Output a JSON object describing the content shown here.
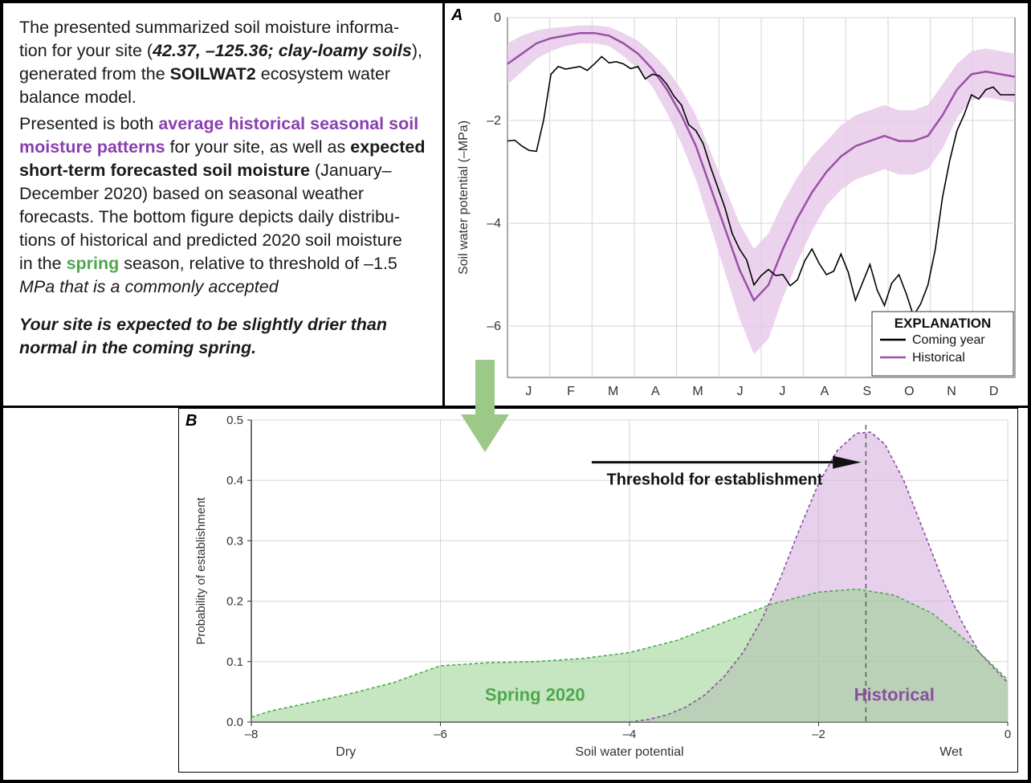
{
  "text_panel": {
    "line1_a": "The presented summarized soil moisture informa-",
    "line1_b": "tion for your site (",
    "coords": "42.37, –125.36; clay-loamy soils",
    "line1_c": "),",
    "line2_a": "generated from the ",
    "model": "SOILWAT2",
    "line2_b": " ecosystem water",
    "line3": "balance model.",
    "line4_a": "Presented is both ",
    "hist_purple": "average historical seasonal soil moisture patterns",
    "line4_b": " for your site, as well as ",
    "forecast_bold": "expected short-term forecasted soil moisture",
    "line5_a": " (January–",
    "line6": "December 2020) based on seasonal weather",
    "line7": "forecasts. The bottom figure depicts daily distribu-",
    "line8": "tions of historical and predicted 2020 soil moisture",
    "line9_a": "in the ",
    "spring": "spring",
    "line9_b": " season, relative to threshold of –1.5",
    "line10": "MPa that is a commonly accepted",
    "conclusion": "Your site is expected to be slightly drier than normal in the coming spring."
  },
  "chart_a": {
    "panel_label": "A",
    "ylabel": "Soil water potential (–MPa)",
    "yticks": [
      0,
      -2,
      -4,
      -6
    ],
    "ytick_labels": [
      "0",
      "–2",
      "–4",
      "–6"
    ],
    "months": [
      "J",
      "F",
      "M",
      "A",
      "M",
      "J",
      "J",
      "A",
      "S",
      "O",
      "N",
      "D"
    ],
    "legend_title": "EXPLANATION",
    "legend_items": [
      {
        "label": "Coming year",
        "color": "#000000"
      },
      {
        "label": "Historical",
        "color": "#9b4fa8"
      }
    ],
    "colors": {
      "historical_line": "#9b4fa8",
      "historical_band": "#e6c8ea",
      "coming_year": "#000000",
      "grid": "#d6d6d6",
      "bg": "#ffffff"
    },
    "ylim": [
      -7,
      0
    ],
    "historical_mean": [
      -0.9,
      -0.7,
      -0.5,
      -0.4,
      -0.35,
      -0.3,
      -0.3,
      -0.35,
      -0.5,
      -0.7,
      -1.0,
      -1.4,
      -1.9,
      -2.5,
      -3.3,
      -4.1,
      -4.9,
      -5.5,
      -5.2,
      -4.5,
      -3.9,
      -3.4,
      -3.0,
      -2.7,
      -2.5,
      -2.4,
      -2.3,
      -2.4,
      -2.4,
      -2.3,
      -1.9,
      -1.4,
      -1.1,
      -1.05,
      -1.1,
      -1.15
    ],
    "historical_upper": [
      -0.5,
      -0.35,
      -0.25,
      -0.2,
      -0.18,
      -0.15,
      -0.15,
      -0.18,
      -0.3,
      -0.45,
      -0.7,
      -1.0,
      -1.4,
      -1.9,
      -2.6,
      -3.3,
      -4.0,
      -4.5,
      -4.2,
      -3.6,
      -3.1,
      -2.7,
      -2.4,
      -2.1,
      -1.9,
      -1.8,
      -1.7,
      -1.8,
      -1.8,
      -1.7,
      -1.3,
      -0.9,
      -0.65,
      -0.6,
      -0.65,
      -0.7
    ],
    "historical_lower": [
      -1.3,
      -1.05,
      -0.8,
      -0.65,
      -0.55,
      -0.5,
      -0.5,
      -0.55,
      -0.75,
      -1.0,
      -1.35,
      -1.85,
      -2.45,
      -3.15,
      -4.05,
      -4.95,
      -5.85,
      -6.55,
      -6.25,
      -5.45,
      -4.75,
      -4.15,
      -3.65,
      -3.35,
      -3.15,
      -3.05,
      -2.95,
      -3.05,
      -3.05,
      -2.95,
      -2.55,
      -1.95,
      -1.6,
      -1.55,
      -1.6,
      -1.65
    ],
    "coming_year_data": [
      -2.4,
      -2.5,
      -2.6,
      -1.1,
      -1.0,
      -0.95,
      -0.9,
      -0.88,
      -0.9,
      -0.95,
      -1.1,
      -1.3,
      -1.7,
      -2.2,
      -2.9,
      -3.7,
      -4.5,
      -5.2,
      -4.9,
      -5.0,
      -5.1,
      -4.5,
      -5.0,
      -4.6,
      -5.5,
      -4.8,
      -5.6,
      -5.0,
      -5.8,
      -5.2,
      -3.5,
      -2.2,
      -1.5,
      -1.4,
      -1.5,
      -1.5
    ]
  },
  "chart_b": {
    "panel_label": "B",
    "ylabel": "Probability of establishment",
    "xlabel": "Soil water potential",
    "threshold_label": "Threshold for establishment",
    "spring_label": "Spring 2020",
    "hist_label": "Historical",
    "dry_label": "Dry",
    "wet_label": "Wet",
    "xlim": [
      -8,
      0
    ],
    "ylim": [
      0,
      0.5
    ],
    "xticks": [
      -8,
      -6,
      -4,
      -2,
      0
    ],
    "xtick_labels": [
      "–8",
      "–6",
      "–4",
      "–2",
      "0"
    ],
    "yticks": [
      0.0,
      0.1,
      0.2,
      0.3,
      0.4,
      0.5
    ],
    "ytick_labels": [
      "0.0",
      "0.1",
      "0.2",
      "0.3",
      "0.4",
      "0.5"
    ],
    "threshold_x": -1.5,
    "colors": {
      "spring_fill": "rgba(150,210,140,0.55)",
      "spring_line": "#4ea84e",
      "hist_fill": "rgba(210,170,220,0.55)",
      "hist_line": "#8a4fa0",
      "grid": "#d6d6d6",
      "bg": "#ffffff",
      "axis": "#333333"
    },
    "spring_curve": [
      [
        -8.0,
        0.008
      ],
      [
        -7.8,
        0.018
      ],
      [
        -7.5,
        0.028
      ],
      [
        -7.0,
        0.045
      ],
      [
        -6.5,
        0.065
      ],
      [
        -6.2,
        0.082
      ],
      [
        -6.0,
        0.093
      ],
      [
        -5.5,
        0.098
      ],
      [
        -5.0,
        0.1
      ],
      [
        -4.5,
        0.105
      ],
      [
        -4.0,
        0.115
      ],
      [
        -3.5,
        0.135
      ],
      [
        -3.0,
        0.165
      ],
      [
        -2.5,
        0.195
      ],
      [
        -2.0,
        0.215
      ],
      [
        -1.6,
        0.22
      ],
      [
        -1.2,
        0.21
      ],
      [
        -0.8,
        0.18
      ],
      [
        -0.4,
        0.13
      ],
      [
        0.0,
        0.07
      ]
    ],
    "hist_curve": [
      [
        -4.0,
        0.0
      ],
      [
        -3.8,
        0.004
      ],
      [
        -3.6,
        0.012
      ],
      [
        -3.4,
        0.025
      ],
      [
        -3.2,
        0.045
      ],
      [
        -3.0,
        0.075
      ],
      [
        -2.8,
        0.115
      ],
      [
        -2.6,
        0.17
      ],
      [
        -2.4,
        0.24
      ],
      [
        -2.2,
        0.32
      ],
      [
        -2.0,
        0.395
      ],
      [
        -1.8,
        0.45
      ],
      [
        -1.6,
        0.478
      ],
      [
        -1.45,
        0.48
      ],
      [
        -1.3,
        0.46
      ],
      [
        -1.1,
        0.4
      ],
      [
        -0.9,
        0.32
      ],
      [
        -0.7,
        0.24
      ],
      [
        -0.5,
        0.17
      ],
      [
        -0.3,
        0.115
      ],
      [
        0.0,
        0.065
      ]
    ]
  },
  "arrow": {
    "color": "#9cc987"
  }
}
